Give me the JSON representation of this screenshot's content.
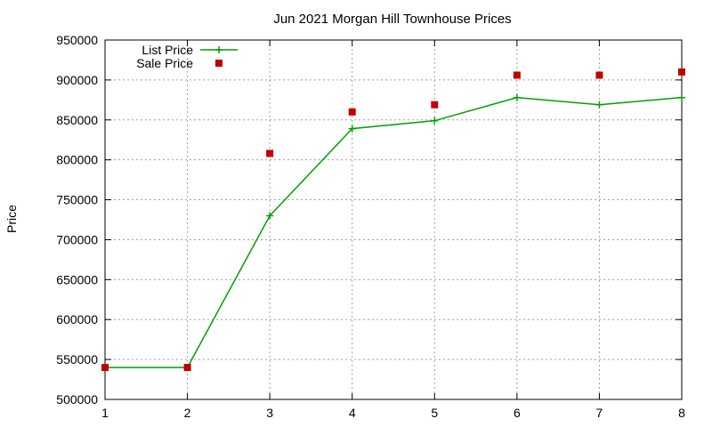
{
  "chart_data": {
    "type": "line",
    "title": "Jun 2021 Morgan Hill Townhouse Prices",
    "xlabel": "",
    "ylabel": "Price",
    "x": [
      1,
      2,
      3,
      4,
      5,
      6,
      7,
      8
    ],
    "xlim": [
      1,
      8
    ],
    "ylim": [
      500000,
      950000
    ],
    "x_ticks": [
      "1",
      "2",
      "3",
      "4",
      "5",
      "6",
      "7",
      "8"
    ],
    "y_ticks": [
      "500000",
      "550000",
      "600000",
      "650000",
      "700000",
      "750000",
      "800000",
      "850000",
      "900000",
      "950000"
    ],
    "grid": true,
    "legend_position": "top-left",
    "series": [
      {
        "name": "List Price",
        "style": "line+cross",
        "color": "#00a000",
        "values": [
          540000,
          540000,
          730000,
          839000,
          849000,
          878000,
          869000,
          878000
        ]
      },
      {
        "name": "Sale Price",
        "style": "square",
        "color": "#c00000",
        "values": [
          540000,
          540000,
          808000,
          860000,
          869000,
          906000,
          906000,
          910000
        ]
      }
    ]
  }
}
